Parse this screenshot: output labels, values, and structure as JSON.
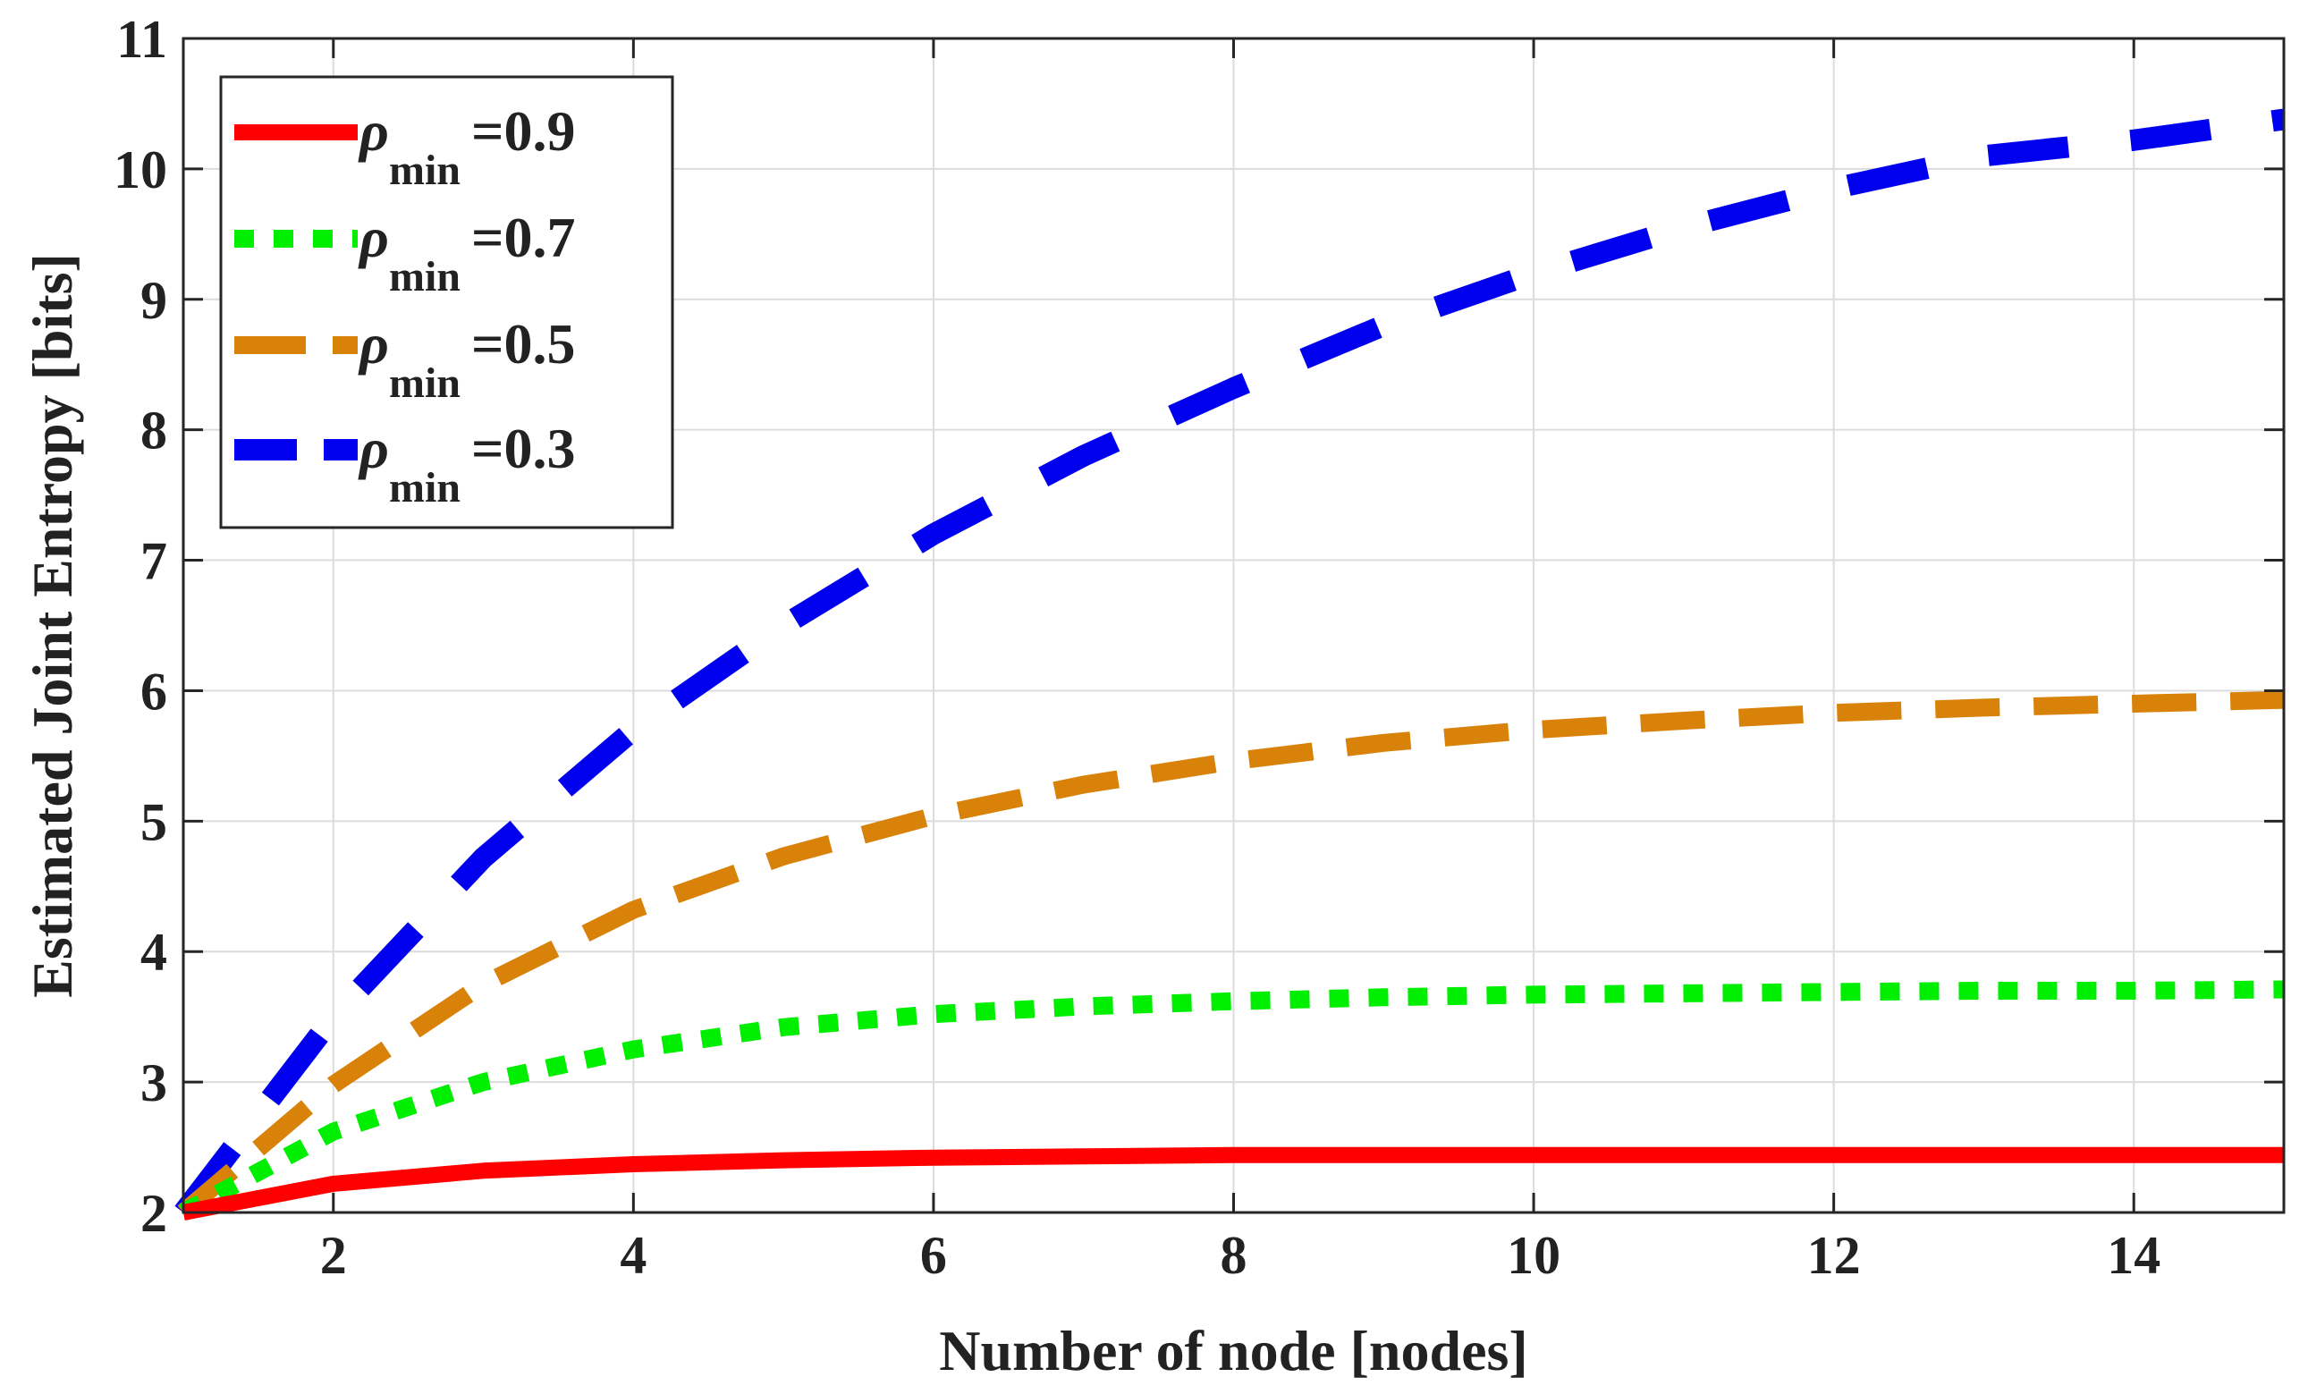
{
  "chart_data": {
    "type": "line",
    "title": "",
    "xlabel": "Number of node [nodes]",
    "ylabel": "Estimated Joint Entropy [bits]",
    "xlim": [
      1,
      15
    ],
    "ylim": [
      2,
      11
    ],
    "xticks": [
      2,
      4,
      6,
      8,
      10,
      12,
      14
    ],
    "yticks": [
      2,
      3,
      4,
      5,
      6,
      7,
      8,
      9,
      10,
      11
    ],
    "grid": true,
    "legend_position": "top-left",
    "x": [
      1,
      2,
      3,
      4,
      5,
      6,
      7,
      8,
      9,
      10,
      11,
      12,
      13,
      14,
      15
    ],
    "series": [
      {
        "name": "ρmin =0.9",
        "symbol": "ρ",
        "subscript": "min",
        "value_label": "=0.9",
        "color": "#ff0000",
        "style": "solid",
        "values": [
          2.0,
          2.22,
          2.32,
          2.37,
          2.4,
          2.42,
          2.43,
          2.44,
          2.44,
          2.44,
          2.44,
          2.44,
          2.44,
          2.44,
          2.44
        ]
      },
      {
        "name": "ρmin =0.7",
        "symbol": "ρ",
        "subscript": "min",
        "value_label": "=0.7",
        "color": "#00ee00",
        "style": "dotted",
        "values": [
          2.0,
          2.62,
          3.0,
          3.25,
          3.42,
          3.52,
          3.58,
          3.62,
          3.65,
          3.67,
          3.68,
          3.69,
          3.7,
          3.7,
          3.71
        ]
      },
      {
        "name": "ρmin =0.5",
        "symbol": "ρ",
        "subscript": "min",
        "value_label": "=0.5",
        "color": "#d9820a",
        "style": "dashed",
        "values": [
          2.0,
          2.98,
          3.75,
          4.32,
          4.73,
          5.04,
          5.28,
          5.46,
          5.6,
          5.7,
          5.77,
          5.83,
          5.87,
          5.9,
          5.93
        ]
      },
      {
        "name": "ρmin =0.3",
        "symbol": "ρ",
        "subscript": "min",
        "value_label": "=0.3",
        "color": "#0000ee",
        "style": "dashed",
        "values": [
          2.0,
          3.5,
          4.72,
          5.7,
          6.5,
          7.2,
          7.8,
          8.32,
          8.8,
          9.2,
          9.55,
          9.85,
          10.1,
          10.22,
          10.38
        ]
      }
    ]
  }
}
